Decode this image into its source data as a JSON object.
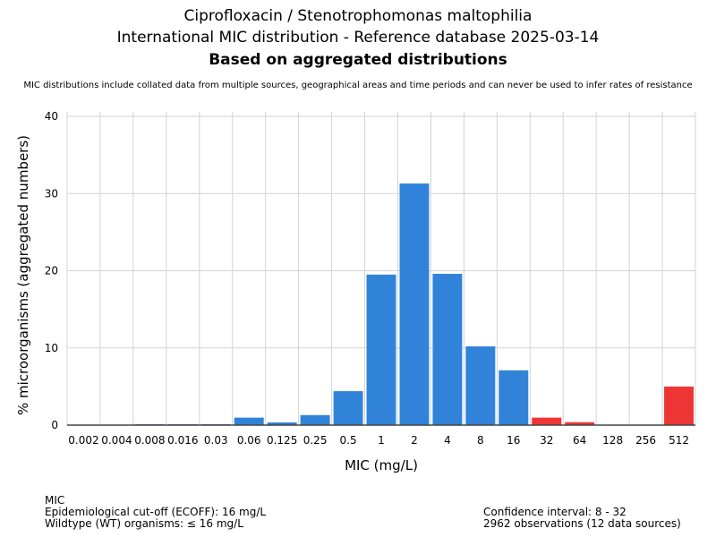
{
  "header": {
    "title1": "Ciprofloxacin / Stenotrophomonas maltophilia",
    "title2": "International MIC distribution - Reference database 2025-03-14",
    "title3": "Based on aggregated distributions",
    "subtitle": "MIC distributions include collated data from multiple sources, geographical areas and time periods and can never be used to infer rates of resistance"
  },
  "footer": {
    "left": [
      "MIC",
      "Epidemiological cut-off (ECOFF): 16 mg/L",
      "Wildtype (WT) organisms: ≤ 16 mg/L"
    ],
    "right": [
      "Confidence interval: 8 - 32",
      "2962 observations (12 data sources)"
    ]
  },
  "chart_data": {
    "type": "bar",
    "xlabel": "MIC (mg/L)",
    "ylabel": "% microorganisms (aggregated numbers)",
    "ylim": [
      0,
      40
    ],
    "yticks": [
      0,
      10,
      20,
      30,
      40
    ],
    "grid": true,
    "categories": [
      "0.002",
      "0.004",
      "0.008",
      "0.016",
      "0.03",
      "0.06",
      "0.125",
      "0.25",
      "0.5",
      "1",
      "2",
      "4",
      "8",
      "16",
      "32",
      "64",
      "128",
      "256",
      "512"
    ],
    "values": [
      0,
      0,
      0.12,
      0.12,
      0.12,
      0.97,
      0.35,
      1.3,
      4.4,
      19.5,
      31.3,
      19.6,
      10.2,
      7.1,
      0.97,
      0.38,
      0,
      0,
      5.0
    ],
    "colors": {
      "wildtype": "#3083D9",
      "non_wildtype": "#EE3535"
    },
    "ecoff_index": 13
  }
}
